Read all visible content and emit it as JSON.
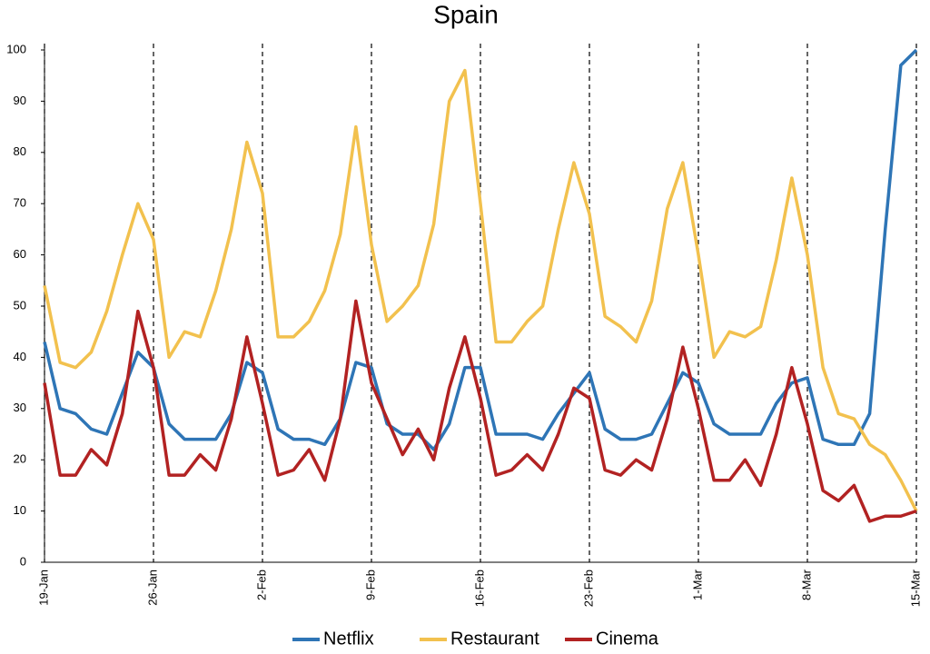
{
  "chart_data": {
    "type": "line",
    "title": "Spain",
    "categories": [
      "19-Jan",
      null,
      null,
      null,
      null,
      null,
      null,
      "26-Jan",
      null,
      null,
      null,
      null,
      null,
      null,
      "2-Feb",
      null,
      null,
      null,
      null,
      null,
      null,
      "9-Feb",
      null,
      null,
      null,
      null,
      null,
      null,
      "16-Feb",
      null,
      null,
      null,
      null,
      null,
      null,
      "23-Feb",
      null,
      null,
      null,
      null,
      null,
      null,
      "1-Mar",
      null,
      null,
      null,
      null,
      null,
      null,
      "8-Mar",
      null,
      null,
      null,
      null,
      null,
      null,
      "15-Mar"
    ],
    "series": [
      {
        "name": "Netflix",
        "color": "#2e75b6",
        "values": [
          43,
          30,
          29,
          26,
          25,
          33,
          41,
          38,
          27,
          24,
          24,
          24,
          29,
          39,
          37,
          26,
          24,
          24,
          23,
          28,
          39,
          38,
          27,
          25,
          25,
          22,
          27,
          38,
          38,
          25,
          25,
          25,
          24,
          29,
          33,
          37,
          26,
          24,
          24,
          25,
          31,
          37,
          35,
          27,
          25,
          25,
          25,
          31,
          35,
          36,
          24,
          23,
          23,
          29,
          65,
          97,
          100
        ]
      },
      {
        "name": "Restaurant",
        "color": "#f2c14e",
        "values": [
          54,
          39,
          38,
          41,
          49,
          60,
          70,
          63,
          40,
          45,
          44,
          53,
          65,
          82,
          72,
          44,
          44,
          47,
          53,
          64,
          85,
          62,
          47,
          50,
          54,
          66,
          90,
          96,
          70,
          43,
          43,
          47,
          50,
          65,
          78,
          68,
          48,
          46,
          43,
          51,
          69,
          78,
          60,
          40,
          45,
          44,
          46,
          59,
          75,
          60,
          38,
          29,
          28,
          23,
          21,
          16,
          10
        ]
      },
      {
        "name": "Cinema",
        "color": "#b22222",
        "values": [
          35,
          17,
          17,
          22,
          19,
          29,
          49,
          38,
          17,
          17,
          21,
          18,
          28,
          44,
          31,
          17,
          18,
          22,
          16,
          28,
          51,
          35,
          28,
          21,
          26,
          20,
          34,
          44,
          32,
          17,
          18,
          21,
          18,
          25,
          34,
          32,
          18,
          17,
          20,
          18,
          28,
          42,
          30,
          16,
          16,
          20,
          15,
          25,
          38,
          27,
          14,
          12,
          15,
          8,
          9,
          9,
          10
        ]
      }
    ],
    "ylim": [
      0,
      100
    ],
    "yticks": [
      0,
      10,
      20,
      30,
      40,
      50,
      60,
      70,
      80,
      90,
      100
    ],
    "legend": "bottom"
  }
}
